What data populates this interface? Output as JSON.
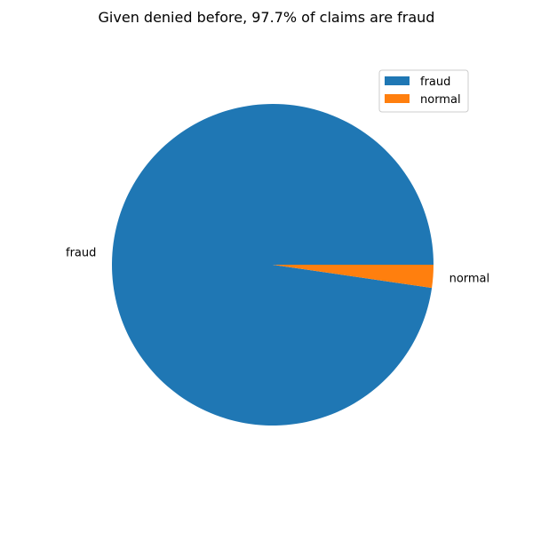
{
  "chart_data": {
    "type": "pie",
    "title": "Given denied before, 97.7% of claims are fraud",
    "categories": [
      "fraud",
      "normal"
    ],
    "values": [
      97.7,
      2.3
    ],
    "colors": [
      "#1f77b4",
      "#ff7f0e"
    ],
    "legend": {
      "position": "top-right",
      "entries": [
        "fraud",
        "normal"
      ]
    }
  }
}
